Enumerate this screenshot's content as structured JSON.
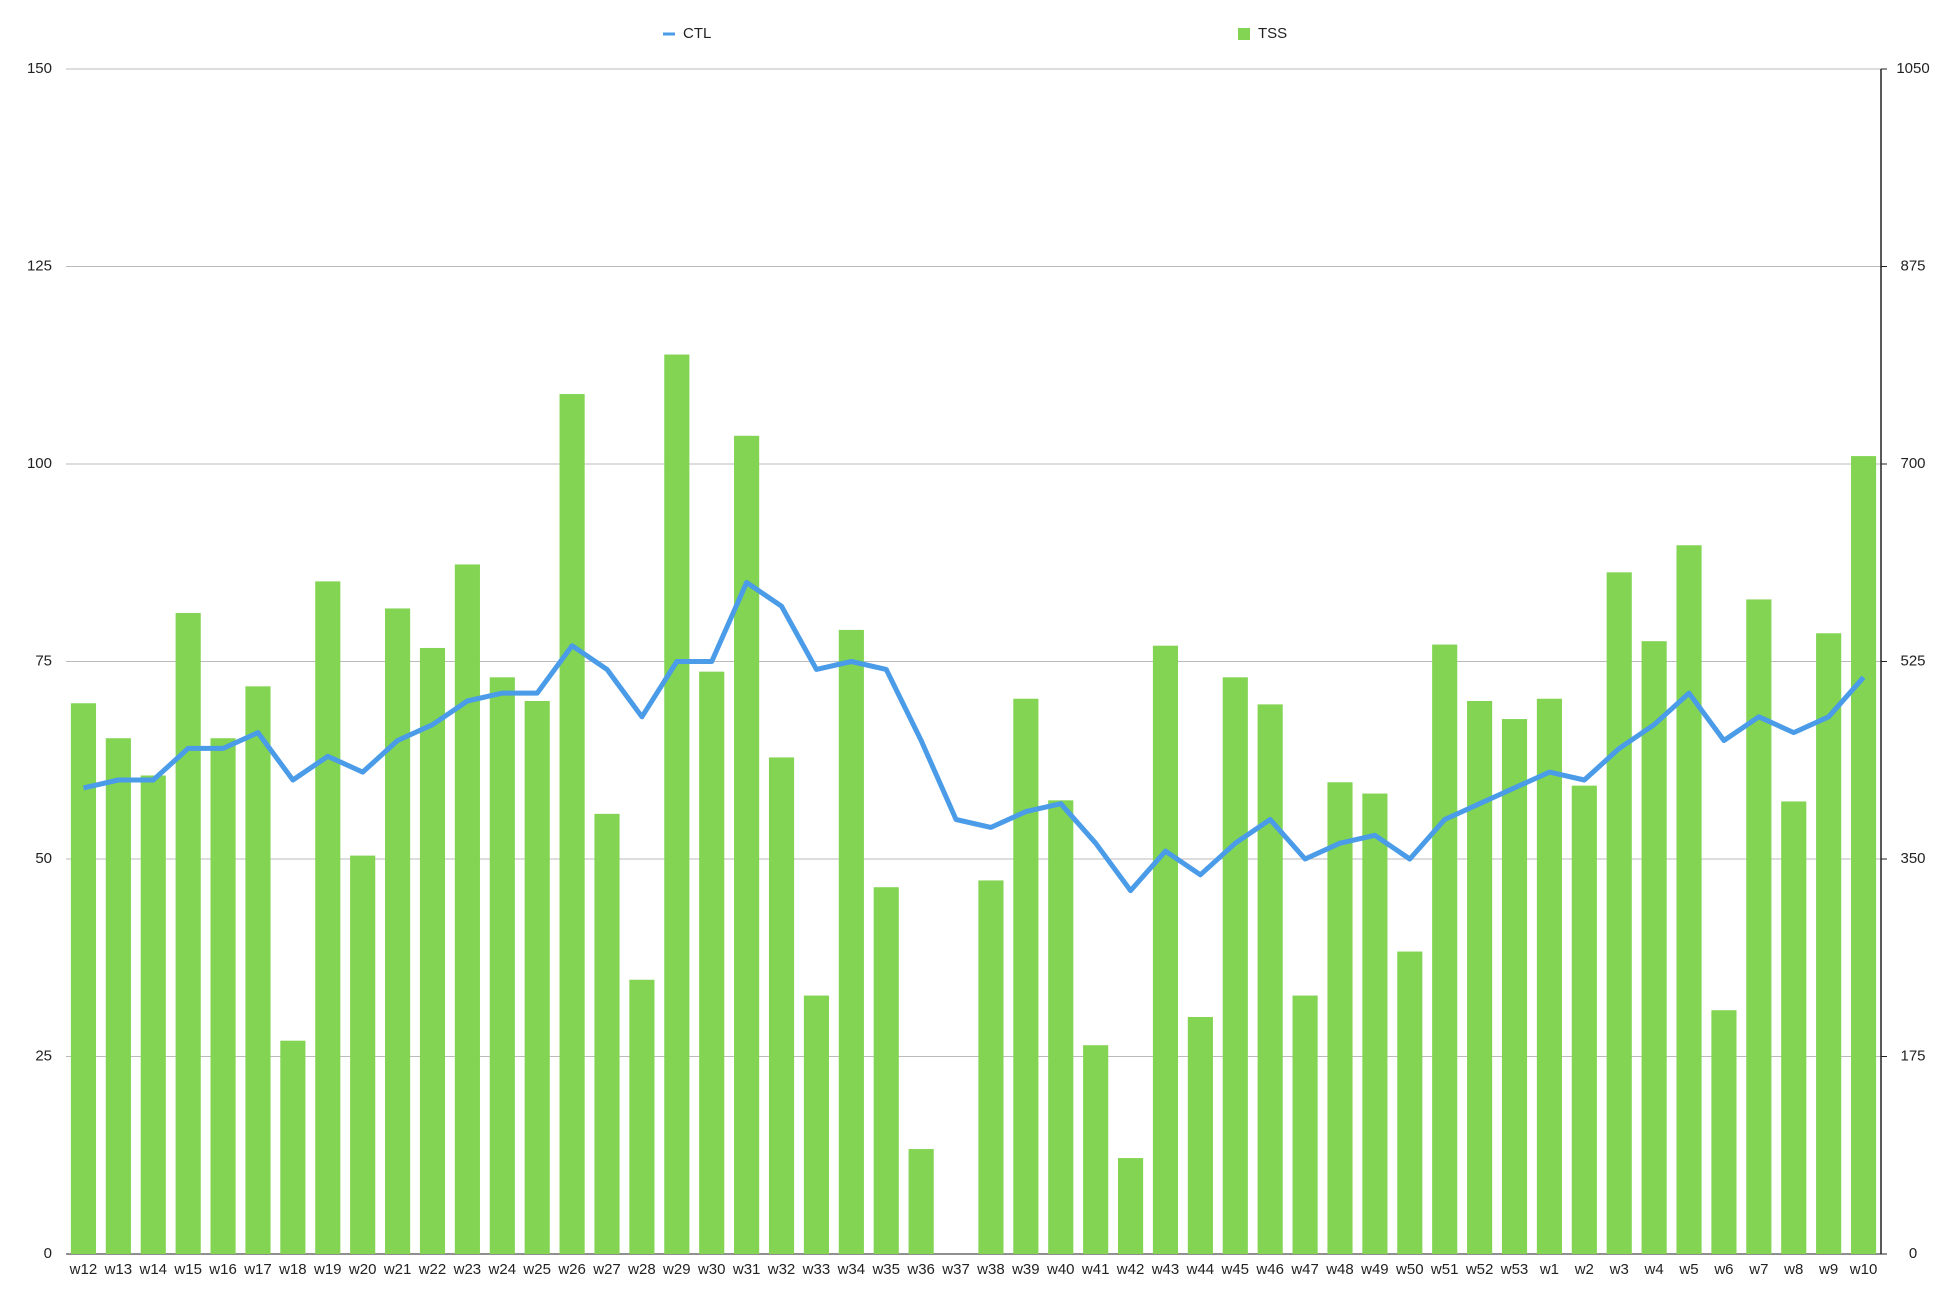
{
  "chart_data": {
    "type": "bar",
    "categories": [
      "w12",
      "w13",
      "w14",
      "w15",
      "w16",
      "w17",
      "w18",
      "w19",
      "w20",
      "w21",
      "w22",
      "w23",
      "w24",
      "w25",
      "w26",
      "w27",
      "w28",
      "w29",
      "w30",
      "w31",
      "w32",
      "w33",
      "w34",
      "w35",
      "w36",
      "w37",
      "w38",
      "w39",
      "w40",
      "w41",
      "w42",
      "w43",
      "w44",
      "w45",
      "w46",
      "w47",
      "w48",
      "w49",
      "w50",
      "w51",
      "w52",
      "w53",
      "w1",
      "w2",
      "w3",
      "w4",
      "w5",
      "w6",
      "w7",
      "w8",
      "w9",
      "w10"
    ],
    "series": [
      {
        "name": "CTL",
        "type": "line",
        "color": "#4a9be8",
        "values": [
          59,
          60,
          60,
          64,
          64,
          66,
          60,
          63,
          61,
          65,
          67,
          70,
          71,
          71,
          77,
          74,
          68,
          75,
          75,
          85,
          82,
          74,
          75,
          74,
          65,
          55,
          54,
          56,
          57,
          52,
          46,
          51,
          48,
          52,
          55,
          50,
          52,
          53,
          50,
          55,
          57,
          59,
          61,
          60,
          64,
          67,
          71,
          65,
          68,
          66,
          68,
          73
        ]
      },
      {
        "name": "TSS",
        "type": "bar",
        "axis": "y2",
        "color": "#82d452",
        "values": [
          488,
          457,
          424,
          568,
          457,
          503,
          189,
          596,
          353,
          572,
          537,
          611,
          511,
          490,
          762,
          390,
          243,
          797,
          516,
          725,
          440,
          229,
          553,
          325,
          93,
          0,
          331,
          492,
          402,
          185,
          85,
          539,
          210,
          511,
          487,
          229,
          418,
          408,
          268,
          540,
          490,
          474,
          492,
          415,
          604,
          543,
          628,
          216,
          580,
          401,
          550,
          707
        ]
      }
    ],
    "ylim": [
      0,
      150
    ],
    "yticks": [
      0,
      25,
      50,
      75,
      100,
      125,
      150
    ],
    "y2lim": [
      0,
      1050
    ],
    "y2ticks": [
      0,
      175,
      350,
      525,
      700,
      875,
      1050
    ],
    "grid": true,
    "legend": "top"
  }
}
